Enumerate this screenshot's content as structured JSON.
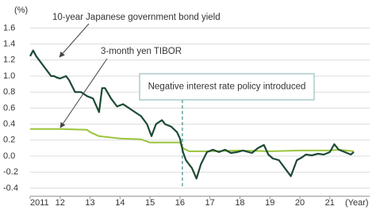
{
  "chart_data": {
    "type": "line",
    "y_unit": "(%)",
    "x_unit": "(Year)",
    "xlim": [
      2011,
      2021.8
    ],
    "xticks": [
      {
        "value": 2011,
        "label": "2011"
      },
      {
        "value": 2012,
        "label": "12"
      },
      {
        "value": 2013,
        "label": "13"
      },
      {
        "value": 2014,
        "label": "14"
      },
      {
        "value": 2015,
        "label": "15"
      },
      {
        "value": 2016,
        "label": "16"
      },
      {
        "value": 2017,
        "label": "17"
      },
      {
        "value": 2018,
        "label": "18"
      },
      {
        "value": 2019,
        "label": "19"
      },
      {
        "value": 2020,
        "label": "20"
      },
      {
        "value": 2021,
        "label": "21"
      }
    ],
    "ylim": [
      -0.5,
      1.7
    ],
    "yticks": [
      1.6,
      1.4,
      1.2,
      {
        "value": 1,
        "label": "1.0"
      },
      0.8,
      0.6,
      0.4,
      0.2,
      {
        "value": 0,
        "label": "0.0"
      },
      -0.2,
      -0.4
    ],
    "grid": true,
    "annotations": [
      {
        "text": "10-year Japanese government bond yield"
      },
      {
        "text": "3-month yen TIBOR"
      },
      {
        "text": "Negative interest rate policy introduced",
        "x": 2016.08
      }
    ],
    "series": [
      {
        "name": "10-year Japanese government bond yield",
        "color": "#1d4a35",
        "x": [
          2011.0,
          2011.1,
          2011.2,
          2011.3,
          2011.4,
          2011.5,
          2011.6,
          2011.7,
          2011.8,
          2011.9,
          2012.0,
          2012.2,
          2012.3,
          2012.5,
          2012.7,
          2012.9,
          2013.1,
          2013.3,
          2013.4,
          2013.5,
          2013.7,
          2013.9,
          2014.1,
          2014.3,
          2014.5,
          2014.7,
          2014.9,
          2015.05,
          2015.2,
          2015.4,
          2015.5,
          2015.7,
          2015.9,
          2016.0,
          2016.1,
          2016.2,
          2016.4,
          2016.55,
          2016.7,
          2016.9,
          2017.1,
          2017.3,
          2017.5,
          2017.7,
          2017.9,
          2018.1,
          2018.4,
          2018.6,
          2018.8,
          2018.95,
          2019.1,
          2019.3,
          2019.5,
          2019.7,
          2019.9,
          2020.05,
          2020.2,
          2020.4,
          2020.6,
          2020.8,
          2021.0,
          2021.15,
          2021.3,
          2021.5,
          2021.7,
          2021.8
        ],
        "values": [
          1.25,
          1.32,
          1.25,
          1.2,
          1.15,
          1.1,
          1.05,
          1.0,
          1.0,
          0.98,
          0.97,
          1.0,
          0.95,
          0.8,
          0.8,
          0.75,
          0.72,
          0.55,
          0.85,
          0.85,
          0.72,
          0.62,
          0.65,
          0.6,
          0.55,
          0.5,
          0.4,
          0.25,
          0.4,
          0.45,
          0.4,
          0.37,
          0.3,
          0.22,
          0.05,
          -0.05,
          -0.15,
          -0.28,
          -0.1,
          0.05,
          0.08,
          0.05,
          0.08,
          0.04,
          0.05,
          0.07,
          0.04,
          0.1,
          0.14,
          0.02,
          -0.03,
          -0.05,
          -0.15,
          -0.25,
          -0.05,
          -0.02,
          0.02,
          0.01,
          0.03,
          0.02,
          0.05,
          0.15,
          0.08,
          0.05,
          0.02,
          0.05
        ]
      },
      {
        "name": "3-month yen TIBOR",
        "color": "#9bc43c",
        "x": [
          2011.0,
          2012.0,
          2012.9,
          2013.0,
          2013.3,
          2014.0,
          2014.7,
          2015.0,
          2016.0,
          2016.1,
          2016.3,
          2017.0,
          2018.0,
          2019.0,
          2020.0,
          2021.0,
          2021.3,
          2021.8
        ],
        "values": [
          0.34,
          0.34,
          0.33,
          0.3,
          0.25,
          0.22,
          0.21,
          0.17,
          0.17,
          0.1,
          0.06,
          0.06,
          0.07,
          0.06,
          0.07,
          0.07,
          0.08,
          0.06
        ]
      }
    ]
  }
}
